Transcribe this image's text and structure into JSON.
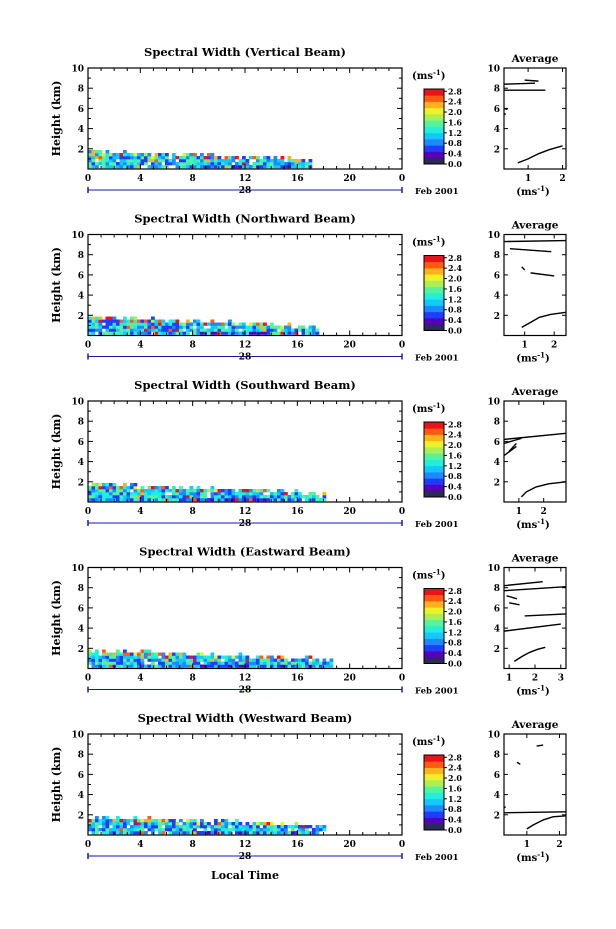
{
  "figure": {
    "xlabel": "Local Time",
    "ylabel": "Height (km)",
    "unit_label": "(ms",
    "unit_exp": "-1",
    "date_day": "28",
    "date_label": "Feb 2001",
    "average_title": "Average",
    "colors": {
      "axis": "#000000",
      "date_bar": "#1a1aaa",
      "colormap": [
        "#2a2a55",
        "#5500bb",
        "#1f3cff",
        "#1e88ff",
        "#13c8ff",
        "#22eedd",
        "#55f2a0",
        "#a8f055",
        "#eef02a",
        "#ffb31a",
        "#ff5a11",
        "#e8141a"
      ]
    }
  },
  "chart_data": [
    {
      "type": "heatmap",
      "title": "Spectral Width (Vertical Beam)",
      "x_ticks": [
        "0",
        "4",
        "8",
        "12",
        "16",
        "20",
        "0"
      ],
      "xlim": [
        0,
        24
      ],
      "y_ticks": [
        "2",
        "4",
        "6",
        "8",
        "10"
      ],
      "ylim": [
        0,
        10
      ],
      "colorbar_ticks": [
        "2.8",
        "2.4",
        "2.0",
        "1.6",
        "1.2",
        "0.8",
        "0.4",
        "0.0"
      ],
      "colorbar_range": [
        0,
        2.8
      ],
      "data_extent": {
        "time_start": 0,
        "time_end": 17,
        "height_top": 2.0
      },
      "average": {
        "x_ticks": [
          "1",
          "2"
        ],
        "xlim": [
          0.3,
          2.1
        ],
        "ylim": [
          0,
          10
        ],
        "y_ticks": [
          "2",
          "4",
          "6",
          "8",
          "10"
        ],
        "profile": [
          [
            0.7,
            0.6
          ],
          [
            1.0,
            1.0
          ],
          [
            1.3,
            1.5
          ],
          [
            1.6,
            1.9
          ],
          [
            2.0,
            2.3
          ]
        ],
        "segments": [
          [
            [
              0.3,
              8.4
            ],
            [
              1.2,
              8.5
            ]
          ],
          [
            [
              0.3,
              7.8
            ],
            [
              1.5,
              7.8
            ]
          ],
          [
            [
              0.9,
              8.8
            ],
            [
              1.3,
              8.7
            ]
          ],
          [
            [
              0.3,
              6.0
            ],
            [
              0.4,
              5.9
            ]
          ],
          [
            [
              0.3,
              5.5
            ],
            [
              0.35,
              5.4
            ]
          ]
        ]
      }
    },
    {
      "type": "heatmap",
      "title": "Spectral Width (Northward Beam)",
      "x_ticks": [
        "0",
        "4",
        "8",
        "12",
        "16",
        "20",
        "0"
      ],
      "xlim": [
        0,
        24
      ],
      "y_ticks": [
        "2",
        "4",
        "6",
        "8",
        "10"
      ],
      "ylim": [
        0,
        10
      ],
      "colorbar_ticks": [
        "2.8",
        "2.4",
        "2.0",
        "1.6",
        "1.2",
        "0.8",
        "0.4",
        "0.0"
      ],
      "colorbar_range": [
        0,
        2.8
      ],
      "data_extent": {
        "time_start": 0,
        "time_end": 17.5,
        "height_top": 2.0
      },
      "average": {
        "x_ticks": [
          "1",
          "2"
        ],
        "xlim": [
          0.3,
          2.4
        ],
        "ylim": [
          0,
          10
        ],
        "y_ticks": [
          "2",
          "4",
          "6",
          "8",
          "10"
        ],
        "profile": [
          [
            0.9,
            0.8
          ],
          [
            1.2,
            1.3
          ],
          [
            1.5,
            1.8
          ],
          [
            1.9,
            2.1
          ],
          [
            2.4,
            2.3
          ]
        ],
        "segments": [
          [
            [
              0.3,
              9.3
            ],
            [
              2.4,
              9.4
            ]
          ],
          [
            [
              0.5,
              8.6
            ],
            [
              1.9,
              8.3
            ]
          ],
          [
            [
              1.2,
              6.2
            ],
            [
              2.0,
              5.9
            ]
          ],
          [
            [
              0.9,
              6.8
            ],
            [
              1.0,
              6.5
            ]
          ]
        ]
      }
    },
    {
      "type": "heatmap",
      "title": "Spectral Width (Southward Beam)",
      "x_ticks": [
        "0",
        "4",
        "8",
        "12",
        "16",
        "20",
        "0"
      ],
      "xlim": [
        0,
        24
      ],
      "y_ticks": [
        "2",
        "4",
        "6",
        "8",
        "10"
      ],
      "ylim": [
        0,
        10
      ],
      "colorbar_ticks": [
        "2.8",
        "2.4",
        "2.0",
        "1.6",
        "1.2",
        "0.8",
        "0.4",
        "0.0"
      ],
      "colorbar_range": [
        0,
        2.8
      ],
      "data_extent": {
        "time_start": 0,
        "time_end": 18,
        "height_top": 2.0
      },
      "average": {
        "x_ticks": [
          "1",
          "2"
        ],
        "xlim": [
          0.4,
          2.9
        ],
        "ylim": [
          0,
          10
        ],
        "y_ticks": [
          "2",
          "4",
          "6",
          "8",
          "10"
        ],
        "profile": [
          [
            1.1,
            0.5
          ],
          [
            1.3,
            1.0
          ],
          [
            1.7,
            1.5
          ],
          [
            2.2,
            1.8
          ],
          [
            2.9,
            2.0
          ]
        ],
        "segments": [
          [
            [
              0.4,
              6.2
            ],
            [
              2.9,
              6.8
            ]
          ],
          [
            [
              0.4,
              5.8
            ],
            [
              1.1,
              6.3
            ]
          ],
          [
            [
              0.4,
              4.6
            ],
            [
              0.9,
              5.5
            ]
          ],
          [
            [
              0.6,
              5.0
            ],
            [
              0.9,
              5.8
            ]
          ]
        ]
      }
    },
    {
      "type": "heatmap",
      "title": "Spectral Width (Eastward Beam)",
      "x_ticks": [
        "0",
        "4",
        "8",
        "12",
        "16",
        "20",
        "0"
      ],
      "xlim": [
        0,
        24
      ],
      "y_ticks": [
        "2",
        "4",
        "6",
        "8",
        "10"
      ],
      "ylim": [
        0,
        10
      ],
      "colorbar_ticks": [
        "2.8",
        "2.4",
        "2.0",
        "1.6",
        "1.2",
        "0.8",
        "0.4",
        "0.0"
      ],
      "colorbar_range": [
        0,
        2.8
      ],
      "data_extent": {
        "time_start": 0,
        "time_end": 18.5,
        "height_top": 2.0
      },
      "average": {
        "x_ticks": [
          "1",
          "2",
          "3"
        ],
        "xlim": [
          0.8,
          3.2
        ],
        "ylim": [
          0,
          10
        ],
        "y_ticks": [
          "2",
          "4",
          "6",
          "8",
          "10"
        ],
        "profile": [
          [
            1.2,
            0.7
          ],
          [
            1.5,
            1.2
          ],
          [
            1.8,
            1.6
          ],
          [
            2.1,
            1.9
          ],
          [
            2.4,
            2.1
          ]
        ],
        "segments": [
          [
            [
              0.8,
              8.2
            ],
            [
              2.3,
              8.6
            ]
          ],
          [
            [
              0.8,
              7.7
            ],
            [
              3.2,
              8.1
            ]
          ],
          [
            [
              1.6,
              5.2
            ],
            [
              3.2,
              5.4
            ]
          ],
          [
            [
              0.9,
              7.2
            ],
            [
              1.3,
              6.9
            ]
          ],
          [
            [
              1.0,
              6.5
            ],
            [
              1.4,
              6.3
            ]
          ],
          [
            [
              0.8,
              3.7
            ],
            [
              3.0,
              4.4
            ]
          ]
        ]
      }
    },
    {
      "type": "heatmap",
      "title": "Spectral Width (Westward Beam)",
      "x_ticks": [
        "0",
        "4",
        "8",
        "12",
        "16",
        "20",
        "0"
      ],
      "xlim": [
        0,
        24
      ],
      "y_ticks": [
        "2",
        "4",
        "6",
        "8",
        "10"
      ],
      "ylim": [
        0,
        10
      ],
      "colorbar_ticks": [
        "2.8",
        "2.4",
        "2.0",
        "1.6",
        "1.2",
        "0.8",
        "0.4",
        "0.0"
      ],
      "colorbar_range": [
        0,
        2.8
      ],
      "data_extent": {
        "time_start": 0,
        "time_end": 18,
        "height_top": 2.0
      },
      "average": {
        "x_ticks": [
          "1",
          "2"
        ],
        "xlim": [
          0.3,
          2.2
        ],
        "ylim": [
          0,
          10
        ],
        "y_ticks": [
          "2",
          "4",
          "6",
          "8",
          "10"
        ],
        "profile": [
          [
            1.0,
            0.6
          ],
          [
            1.2,
            1.0
          ],
          [
            1.5,
            1.5
          ],
          [
            1.8,
            1.8
          ],
          [
            2.2,
            1.9
          ]
        ],
        "segments": [
          [
            [
              0.3,
              2.2
            ],
            [
              2.2,
              2.3
            ]
          ],
          [
            [
              1.3,
              8.8
            ],
            [
              1.5,
              8.9
            ]
          ],
          [
            [
              0.7,
              7.2
            ],
            [
              0.8,
              7.0
            ]
          ],
          [
            [
              0.3,
              2.7
            ],
            [
              0.35,
              2.8
            ]
          ]
        ]
      }
    }
  ]
}
